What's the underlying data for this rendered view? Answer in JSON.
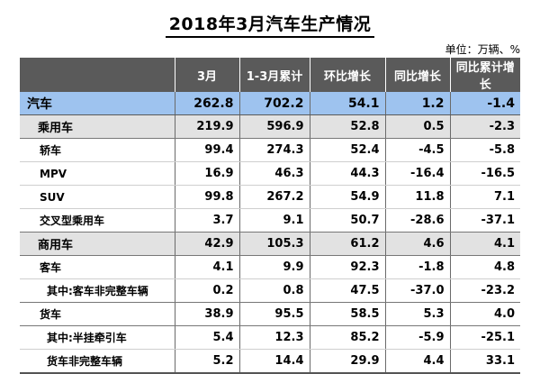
{
  "title": "2018年3月汽车生产情况",
  "unit": "单位：万辆、%",
  "headers": [
    "",
    "3月",
    "1-3月累计",
    "环比增长",
    "同比增长",
    "同比累计增长"
  ],
  "rows": [
    {
      "label": "汽车",
      "values": [
        "262.8",
        "702.2",
        "54.1",
        "1.2",
        "-1.4"
      ]
    },
    {
      "label": "乘用车",
      "values": [
        "219.9",
        "596.9",
        "52.8",
        "0.5",
        "-2.3"
      ]
    },
    {
      "label": "轿车",
      "values": [
        "99.4",
        "274.3",
        "52.4",
        "-4.5",
        "-5.8"
      ]
    },
    {
      "label": "MPV",
      "values": [
        "16.9",
        "46.3",
        "44.3",
        "-16.4",
        "-16.5"
      ]
    },
    {
      "label": "SUV",
      "values": [
        "99.8",
        "267.2",
        "54.9",
        "11.8",
        "7.1"
      ]
    },
    {
      "label": "交叉型乘用车",
      "values": [
        "3.7",
        "9.1",
        "50.7",
        "-28.6",
        "-37.1"
      ]
    },
    {
      "label": "商用车",
      "values": [
        "42.9",
        "105.3",
        "61.2",
        "4.6",
        "4.1"
      ]
    },
    {
      "label": "客车",
      "values": [
        "4.1",
        "9.9",
        "92.3",
        "-1.8",
        "4.8"
      ]
    },
    {
      "label": "其中:客车非完整车辆",
      "values": [
        "0.2",
        "0.8",
        "47.5",
        "-37.0",
        "-23.2"
      ]
    },
    {
      "label": "货车",
      "values": [
        "38.9",
        "95.5",
        "58.5",
        "5.3",
        "4.0"
      ]
    },
    {
      "label": "其中:半挂牵引车",
      "values": [
        "5.4",
        "12.3",
        "85.2",
        "-5.9",
        "-25.1"
      ]
    },
    {
      "label": "货车非完整车辆",
      "values": [
        "5.2",
        "14.4",
        "29.9",
        "4.4",
        "33.1"
      ]
    }
  ]
}
